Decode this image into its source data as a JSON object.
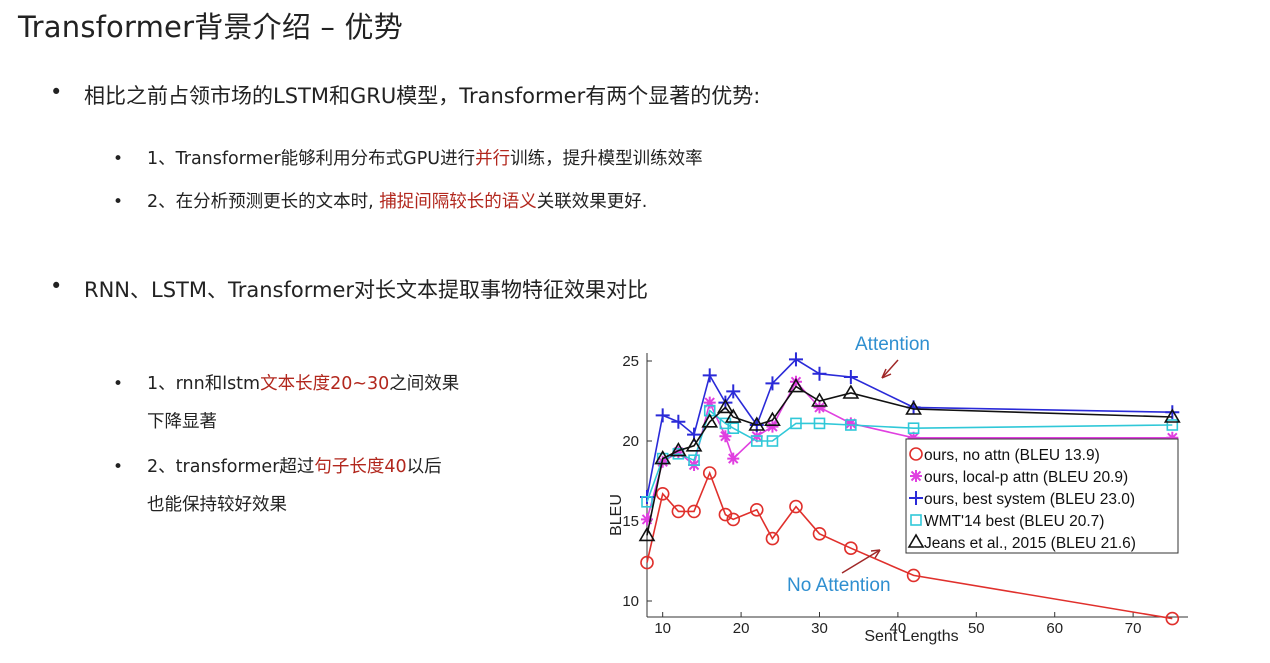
{
  "page": {
    "title": "Transformer背景介绍 – 优势"
  },
  "section1": {
    "bullet": "•",
    "text": "相比之前占领市场的LSTM和GRU模型，Transformer有两个显著的优势:",
    "items": [
      {
        "bullet": "•",
        "before": "1、Transformer能够利用分布式GPU进行",
        "highlight": "并行",
        "after": "训练，提升模型训练效率"
      },
      {
        "bullet": "•",
        "before": "2、在分析预测更长的文本时, ",
        "highlight": "捕捉间隔较长的语义",
        "after": "关联效果更好."
      }
    ]
  },
  "section2": {
    "bullet": "•",
    "text": "RNN、LSTM、Transformer对长文本提取事物特征效果对比",
    "items": [
      {
        "bullet": "•",
        "before": "1、rnn和lstm",
        "highlight": "文本长度20~30",
        "after": "之间效果",
        "line2": "下降显著"
      },
      {
        "bullet": "•",
        "before": "2、transformer超过",
        "highlight": "句子长度40",
        "after": "以后",
        "line2": "也能保持较好效果"
      }
    ]
  },
  "colors": {
    "highlight": "#b2271d",
    "annotation": "#2f8fd0",
    "arrow": "#a02828"
  },
  "chart_data": {
    "type": "line",
    "xlabel": "Sent Lengths",
    "ylabel": "BLEU",
    "xlim": [
      8,
      77
    ],
    "ylim": [
      9,
      25.5
    ],
    "x_ticks": [
      10,
      20,
      30,
      40,
      50,
      60,
      70
    ],
    "y_ticks": [
      10,
      15,
      20,
      25
    ],
    "annotations": [
      "Attention",
      "No Attention"
    ],
    "legend_position": "right",
    "series": [
      {
        "name": "ours, no attn (BLEU 13.9)",
        "color": "#e0302c",
        "marker": "circle",
        "x": [
          8,
          10,
          12,
          14,
          16,
          18,
          19,
          22,
          24,
          27,
          30,
          34,
          42,
          75
        ],
        "y": [
          12.4,
          16.7,
          15.6,
          15.6,
          18.0,
          15.4,
          15.1,
          15.7,
          13.9,
          15.9,
          14.2,
          13.3,
          11.6,
          8.9
        ]
      },
      {
        "name": "ours, local-p attn (BLEU 20.9)",
        "color": "#e040e0",
        "marker": "star",
        "x": [
          8,
          10,
          12,
          14,
          16,
          18,
          19,
          22,
          24,
          27,
          30,
          34,
          42,
          75
        ],
        "y": [
          15.1,
          18.7,
          19.3,
          18.5,
          22.4,
          20.3,
          18.9,
          20.3,
          20.9,
          23.7,
          22.1,
          21.1,
          20.2,
          20.2
        ]
      },
      {
        "name": "ours, best system (BLEU 23.0)",
        "color": "#2a2ad8",
        "marker": "plus",
        "x": [
          8,
          10,
          12,
          14,
          16,
          18,
          19,
          22,
          24,
          27,
          30,
          34,
          42,
          75
        ],
        "y": [
          16.5,
          21.6,
          21.2,
          20.4,
          24.1,
          22.4,
          23.1,
          21.0,
          23.6,
          25.1,
          24.2,
          24.0,
          22.1,
          21.8
        ]
      },
      {
        "name": "WMT'14 best (BLEU 20.7)",
        "color": "#30c8d8",
        "marker": "square",
        "x": [
          8,
          10,
          12,
          14,
          16,
          18,
          19,
          22,
          24,
          27,
          30,
          34,
          42,
          75
        ],
        "y": [
          16.2,
          18.9,
          19.2,
          18.8,
          21.9,
          21.1,
          20.8,
          20.0,
          20.0,
          21.1,
          21.1,
          21.0,
          20.8,
          21.0
        ]
      },
      {
        "name": "Jeans et al., 2015 (BLEU 21.6)",
        "color": "#111111",
        "marker": "triangle",
        "x": [
          8,
          10,
          12,
          14,
          16,
          18,
          19,
          22,
          24,
          27,
          30,
          34,
          42,
          75
        ],
        "y": [
          14.1,
          18.9,
          19.4,
          19.7,
          21.2,
          22.1,
          21.5,
          21.0,
          21.3,
          23.4,
          22.5,
          23.0,
          22.0,
          21.5
        ]
      }
    ]
  }
}
